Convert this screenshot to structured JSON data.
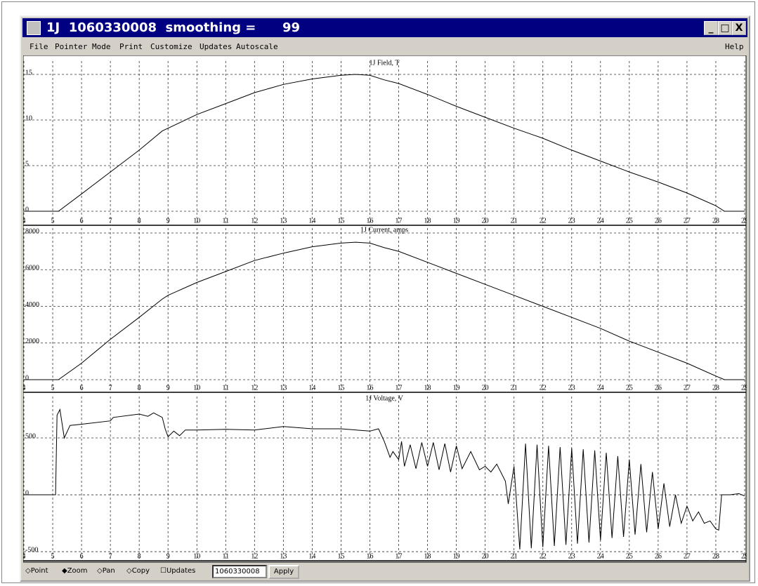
{
  "window": {
    "title": "1J  1060330008  smoothing =",
    "title_value": "99"
  },
  "menu": [
    "File",
    "Pointer Mode",
    "Print",
    "Customize",
    "Updates",
    "Autoscale"
  ],
  "help": "Help",
  "toolbar": {
    "modes": [
      "Point",
      "Zoom",
      "Pan",
      "Copy"
    ],
    "checkbox": "Updates",
    "input": "1060330008",
    "button": "Apply"
  },
  "chart_data": [
    {
      "type": "line",
      "title": "1J Field, T",
      "xlim": [
        4,
        29
      ],
      "xticks": [
        4,
        5,
        6,
        7,
        8,
        9,
        10,
        11,
        12,
        13,
        14,
        15,
        16,
        17,
        18,
        19,
        20,
        21,
        22,
        23,
        24,
        25,
        26,
        27,
        28,
        29
      ],
      "ylim": [
        -0.77,
        16.46
      ],
      "yticks": [
        0,
        5,
        10,
        15
      ],
      "grid": true,
      "series": [
        {
          "color": "#000000",
          "x": [
            4,
            5,
            5.2,
            6,
            7,
            8,
            8.8,
            9,
            10,
            11,
            12,
            13,
            14,
            15,
            15.5,
            16,
            16.5,
            17,
            18,
            19,
            20,
            21,
            22,
            23,
            24,
            25,
            26,
            27,
            28,
            28.3,
            29
          ],
          "values": [
            0,
            0,
            0,
            1.9,
            4.3,
            6.7,
            8.8,
            9.1,
            10.6,
            11.8,
            13,
            13.9,
            14.5,
            14.9,
            15,
            14.9,
            14.4,
            14,
            12.8,
            11.5,
            10.3,
            9.1,
            8,
            6.7,
            5.5,
            4.3,
            3.2,
            2,
            0.6,
            0,
            0
          ]
        }
      ]
    },
    {
      "type": "line",
      "title": "1J Current, amps",
      "xlim": [
        4,
        29
      ],
      "xticks": [
        4,
        5,
        6,
        7,
        8,
        9,
        10,
        11,
        12,
        13,
        14,
        15,
        16,
        17,
        18,
        19,
        20,
        21,
        22,
        23,
        24,
        25,
        26,
        27,
        28,
        29
      ],
      "ylim": [
        -306,
        8268
      ],
      "yticks": [
        0,
        2000,
        4000,
        6000,
        8000
      ],
      "grid": true,
      "series": [
        {
          "color": "#000000",
          "x": [
            4,
            5,
            5.2,
            6,
            7,
            8,
            8.8,
            9,
            10,
            11,
            12,
            13,
            14,
            15,
            15.5,
            16,
            16.5,
            17,
            18,
            19,
            20,
            21,
            22,
            23,
            24,
            25,
            26,
            27,
            28,
            28.3,
            29
          ],
          "values": [
            0,
            0,
            0,
            900,
            2200,
            3400,
            4400,
            4600,
            5300,
            5900,
            6500,
            6900,
            7250,
            7450,
            7500,
            7450,
            7200,
            7000,
            6400,
            5800,
            5200,
            4600,
            4000,
            3400,
            2800,
            2100,
            1500,
            900,
            200,
            0,
            0
          ]
        }
      ]
    },
    {
      "type": "line",
      "title": "1J Voltage, V",
      "xlim": [
        4,
        29
      ],
      "xticks": [
        4,
        5,
        6,
        7,
        8,
        9,
        10,
        11,
        12,
        13,
        14,
        15,
        16,
        17,
        18,
        19,
        20,
        21,
        22,
        23,
        24,
        25,
        26,
        27,
        28,
        29
      ],
      "ylim": [
        -518,
        864
      ],
      "yticks": [
        -500,
        0,
        500
      ],
      "grid": true,
      "series": [
        {
          "color": "#000000",
          "x": [
            4,
            5.1,
            5.15,
            5.25,
            5.4,
            5.6,
            6,
            7,
            7.1,
            8,
            8.3,
            8.5,
            8.8,
            8.9,
            9,
            9.2,
            9.4,
            9.6,
            10,
            11,
            12,
            13,
            14,
            15,
            16,
            16.3,
            16.5,
            16.7,
            16.8,
            17,
            17.1,
            17.2,
            17.4,
            17.6,
            17.8,
            18,
            18.2,
            18.4,
            18.6,
            18.8,
            19,
            19.2,
            19.5,
            19.8,
            20,
            20.2,
            20.4,
            20.7,
            20.8,
            21,
            21.2,
            21.4,
            21.6,
            21.8,
            22,
            22.2,
            22.4,
            22.6,
            22.8,
            23,
            23.2,
            23.4,
            23.6,
            23.8,
            24,
            24.2,
            24.4,
            24.6,
            24.8,
            25,
            25.2,
            25.4,
            25.6,
            25.8,
            26,
            26.2,
            26.4,
            26.6,
            26.8,
            27,
            27.2,
            27.4,
            27.6,
            27.8,
            28,
            28.1,
            28.2,
            28.5,
            28.8,
            29
          ],
          "values": [
            0,
            0,
            700,
            750,
            500,
            610,
            620,
            650,
            680,
            710,
            690,
            720,
            680,
            580,
            510,
            560,
            520,
            570,
            570,
            575,
            570,
            600,
            580,
            580,
            560,
            580,
            470,
            330,
            380,
            310,
            470,
            250,
            440,
            230,
            460,
            250,
            460,
            220,
            450,
            200,
            430,
            230,
            380,
            220,
            250,
            200,
            270,
            120,
            -80,
            250,
            -480,
            450,
            -470,
            440,
            -460,
            430,
            -450,
            420,
            -440,
            410,
            -430,
            400,
            -420,
            390,
            -400,
            370,
            -380,
            340,
            -370,
            310,
            -350,
            270,
            -330,
            200,
            -300,
            100,
            -280,
            0,
            -250,
            -100,
            -230,
            -150,
            -250,
            -230,
            -300,
            -310,
            0,
            0,
            10,
            -10
          ]
        }
      ]
    }
  ]
}
